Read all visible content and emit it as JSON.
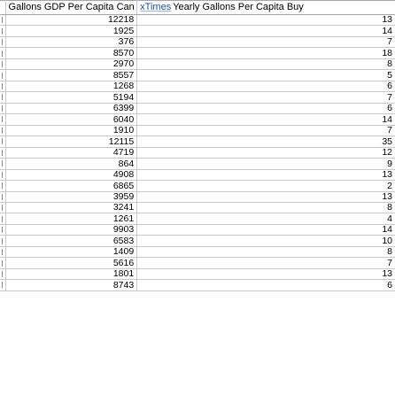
{
  "columns": {
    "gdp_header": "Gallons GDP Per Capita Can Buy",
    "xtimes_link": "xTimes",
    "gallons_header": "Yearly Gallons Per Capita Buy"
  },
  "rows": [
    {
      "gdp": "12218",
      "gallons": "13"
    },
    {
      "gdp": "1925",
      "gallons": "14"
    },
    {
      "gdp": "376",
      "gallons": "7"
    },
    {
      "gdp": "8570",
      "gallons": "18"
    },
    {
      "gdp": "2970",
      "gallons": "8"
    },
    {
      "gdp": "8557",
      "gallons": "5"
    },
    {
      "gdp": "1268",
      "gallons": "6"
    },
    {
      "gdp": "5194",
      "gallons": "7"
    },
    {
      "gdp": "6399",
      "gallons": "6"
    },
    {
      "gdp": "6040",
      "gallons": "14"
    },
    {
      "gdp": "1910",
      "gallons": "7"
    },
    {
      "gdp": "12115",
      "gallons": "35"
    },
    {
      "gdp": "4719",
      "gallons": "12"
    },
    {
      "gdp": "864",
      "gallons": "9"
    },
    {
      "gdp": "4908",
      "gallons": "13"
    },
    {
      "gdp": "6865",
      "gallons": "2"
    },
    {
      "gdp": "3959",
      "gallons": "13"
    },
    {
      "gdp": "3241",
      "gallons": "8"
    },
    {
      "gdp": "1261",
      "gallons": "4"
    },
    {
      "gdp": "9903",
      "gallons": "14"
    },
    {
      "gdp": "6583",
      "gallons": "10"
    },
    {
      "gdp": "1409",
      "gallons": "8"
    },
    {
      "gdp": "5616",
      "gallons": "7"
    },
    {
      "gdp": "1801",
      "gallons": "13"
    },
    {
      "gdp": "8743",
      "gallons": "6"
    }
  ]
}
